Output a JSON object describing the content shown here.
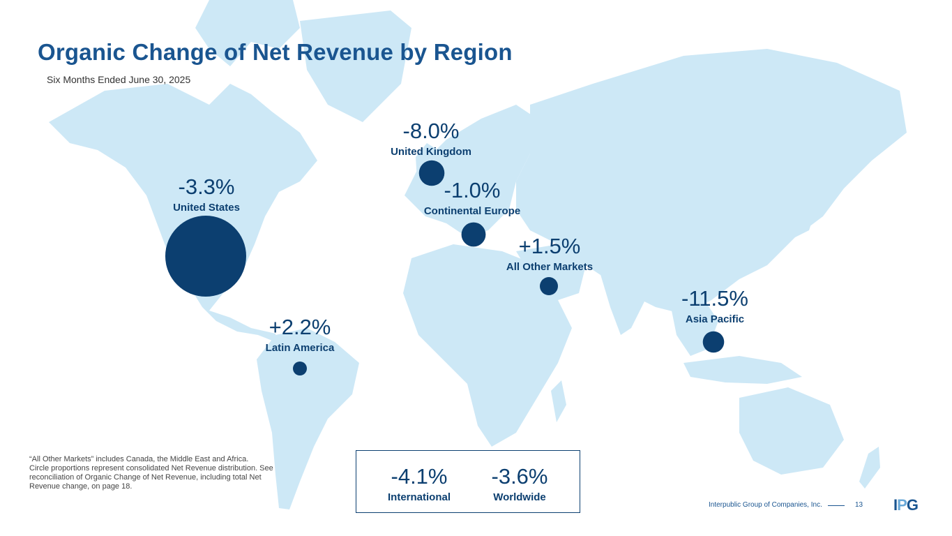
{
  "page": {
    "title": "Organic Change of Net Revenue by Region",
    "subtitle": "Six Months Ended June 30, 2025"
  },
  "chart_data": {
    "type": "bubble-map",
    "title": "Organic Change of Net Revenue by Region",
    "subtitle": "Six Months Ended June 30, 2025",
    "size_note": "Circle proportions represent consolidated Net Revenue distribution",
    "regions": [
      {
        "name": "United States",
        "label": "-3.3%",
        "value": -3.3,
        "relative_size": 1.0
      },
      {
        "name": "United Kingdom",
        "label": "-8.0%",
        "value": -8.0,
        "relative_size": 0.1
      },
      {
        "name": "Continental Europe",
        "label": "-1.0%",
        "value": -1.0,
        "relative_size": 0.09
      },
      {
        "name": "All Other Markets",
        "label": "+1.5%",
        "value": 1.5,
        "relative_size": 0.05
      },
      {
        "name": "Asia Pacific",
        "label": "-11.5%",
        "value": -11.5,
        "relative_size": 0.07
      },
      {
        "name": "Latin America",
        "label": "+2.2%",
        "value": 2.2,
        "relative_size": 0.03
      }
    ],
    "totals": [
      {
        "name": "International",
        "label": "-4.1%",
        "value": -4.1
      },
      {
        "name": "Worldwide",
        "label": "-3.6%",
        "value": -3.6
      }
    ]
  },
  "footnote": {
    "line1": "“All Other Markets” includes Canada, the Middle East and Africa.",
    "line2": "Circle proportions represent consolidated Net Revenue distribution. See reconciliation of Organic Change of Net Revenue, including total Net Revenue change, on page 18."
  },
  "footer": {
    "company": "Interpublic Group of Companies, Inc.",
    "page_number": "13",
    "logo_i": "I",
    "logo_p": "P",
    "logo_g": "G"
  },
  "colors": {
    "bubble": "#0c3f70",
    "map": "#cde8f6",
    "title": "#1a5590"
  }
}
